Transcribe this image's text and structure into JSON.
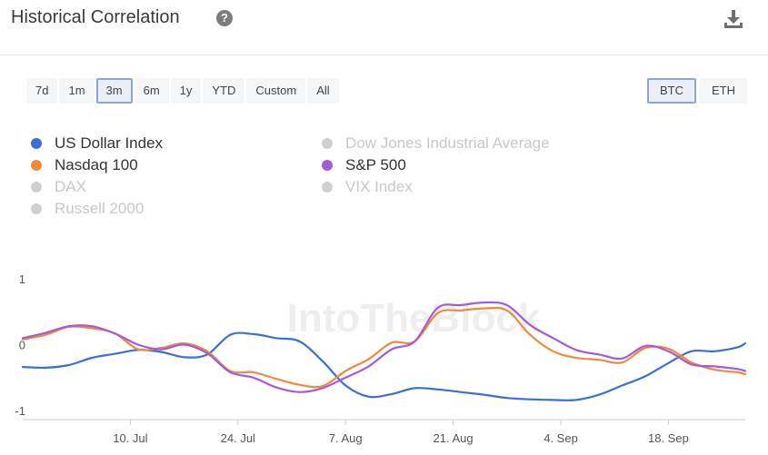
{
  "header": {
    "title": "Historical Correlation",
    "help_icon": "?"
  },
  "ranges": [
    "7d",
    "1m",
    "3m",
    "6m",
    "1y",
    "YTD",
    "Custom",
    "All"
  ],
  "active_range": "3m",
  "assets": [
    "BTC",
    "ETH"
  ],
  "active_asset": "BTC",
  "watermark": "IntoTheBlock",
  "legend": [
    {
      "label": "US Dollar Index",
      "color": "#3b6fd1",
      "active": true
    },
    {
      "label": "Dow Jones Industrial Average",
      "color": "#cfcfcf",
      "active": false
    },
    {
      "label": "Nasdaq 100",
      "color": "#ee8a3e",
      "active": true
    },
    {
      "label": "S&P 500",
      "color": "#a55bd8",
      "active": true
    },
    {
      "label": "DAX",
      "color": "#cfcfcf",
      "active": false
    },
    {
      "label": "VIX Index",
      "color": "#cfcfcf",
      "active": false
    },
    {
      "label": "Russell 2000",
      "color": "#cfcfcf",
      "active": false
    }
  ],
  "chart_data": {
    "type": "line",
    "ylim": [
      -1,
      1
    ],
    "yticks": [
      1,
      0,
      -1
    ],
    "x_range": [
      "2023-06-26",
      "2023-09-28"
    ],
    "xticks": [
      {
        "label": "10. Jul",
        "date": "2023-07-10"
      },
      {
        "label": "24. Jul",
        "date": "2023-07-24"
      },
      {
        "label": "7. Aug",
        "date": "2023-08-07"
      },
      {
        "label": "21. Aug",
        "date": "2023-08-21"
      },
      {
        "label": "4. Sep",
        "date": "2023-09-04"
      },
      {
        "label": "18. Sep",
        "date": "2023-09-18"
      }
    ],
    "grid": false,
    "series": [
      {
        "name": "US Dollar Index",
        "color": "#3b6fd1",
        "points": [
          [
            "2023-06-26",
            -0.34
          ],
          [
            "2023-06-29",
            -0.35
          ],
          [
            "2023-07-02",
            -0.31
          ],
          [
            "2023-07-05",
            -0.2
          ],
          [
            "2023-07-08",
            -0.14
          ],
          [
            "2023-07-11",
            -0.08
          ],
          [
            "2023-07-14",
            -0.11
          ],
          [
            "2023-07-17",
            -0.19
          ],
          [
            "2023-07-20",
            -0.15
          ],
          [
            "2023-07-23",
            0.15
          ],
          [
            "2023-07-26",
            0.16
          ],
          [
            "2023-07-29",
            0.1
          ],
          [
            "2023-08-01",
            0.05
          ],
          [
            "2023-08-04",
            -0.25
          ],
          [
            "2023-08-07",
            -0.62
          ],
          [
            "2023-08-10",
            -0.79
          ],
          [
            "2023-08-13",
            -0.75
          ],
          [
            "2023-08-16",
            -0.66
          ],
          [
            "2023-08-19",
            -0.68
          ],
          [
            "2023-08-22",
            -0.72
          ],
          [
            "2023-08-25",
            -0.76
          ],
          [
            "2023-08-28",
            -0.81
          ],
          [
            "2023-08-31",
            -0.83
          ],
          [
            "2023-09-03",
            -0.84
          ],
          [
            "2023-09-06",
            -0.84
          ],
          [
            "2023-09-09",
            -0.76
          ],
          [
            "2023-09-12",
            -0.62
          ],
          [
            "2023-09-15",
            -0.48
          ],
          [
            "2023-09-18",
            -0.28
          ],
          [
            "2023-09-21",
            -0.1
          ],
          [
            "2023-09-24",
            -0.1
          ],
          [
            "2023-09-27",
            -0.04
          ],
          [
            "2023-09-28",
            0.02
          ]
        ]
      },
      {
        "name": "Nasdaq 100",
        "color": "#ee8a3e",
        "points": [
          [
            "2023-06-26",
            0.08
          ],
          [
            "2023-06-29",
            0.15
          ],
          [
            "2023-07-02",
            0.27
          ],
          [
            "2023-07-05",
            0.25
          ],
          [
            "2023-07-08",
            0.17
          ],
          [
            "2023-07-11",
            -0.07
          ],
          [
            "2023-07-14",
            -0.05
          ],
          [
            "2023-07-17",
            0.02
          ],
          [
            "2023-07-20",
            -0.1
          ],
          [
            "2023-07-23",
            -0.4
          ],
          [
            "2023-07-26",
            -0.42
          ],
          [
            "2023-07-29",
            -0.52
          ],
          [
            "2023-08-01",
            -0.61
          ],
          [
            "2023-08-04",
            -0.63
          ],
          [
            "2023-08-07",
            -0.4
          ],
          [
            "2023-08-10",
            -0.22
          ],
          [
            "2023-08-13",
            0.03
          ],
          [
            "2023-08-16",
            0.05
          ],
          [
            "2023-08-19",
            0.48
          ],
          [
            "2023-08-22",
            0.52
          ],
          [
            "2023-08-25",
            0.55
          ],
          [
            "2023-08-28",
            0.52
          ],
          [
            "2023-08-31",
            0.15
          ],
          [
            "2023-09-03",
            -0.1
          ],
          [
            "2023-09-06",
            -0.2
          ],
          [
            "2023-09-09",
            -0.23
          ],
          [
            "2023-09-12",
            -0.27
          ],
          [
            "2023-09-15",
            -0.05
          ],
          [
            "2023-09-18",
            -0.06
          ],
          [
            "2023-09-21",
            -0.27
          ],
          [
            "2023-09-24",
            -0.38
          ],
          [
            "2023-09-27",
            -0.42
          ],
          [
            "2023-09-28",
            -0.45
          ]
        ]
      },
      {
        "name": "S&P 500",
        "color": "#a55bd8",
        "points": [
          [
            "2023-06-26",
            0.1
          ],
          [
            "2023-06-29",
            0.18
          ],
          [
            "2023-07-02",
            0.28
          ],
          [
            "2023-07-05",
            0.28
          ],
          [
            "2023-07-08",
            0.17
          ],
          [
            "2023-07-11",
            0.0
          ],
          [
            "2023-07-14",
            -0.07
          ],
          [
            "2023-07-17",
            0.0
          ],
          [
            "2023-07-20",
            -0.13
          ],
          [
            "2023-07-23",
            -0.42
          ],
          [
            "2023-07-26",
            -0.5
          ],
          [
            "2023-07-29",
            -0.65
          ],
          [
            "2023-08-01",
            -0.72
          ],
          [
            "2023-08-04",
            -0.66
          ],
          [
            "2023-08-07",
            -0.5
          ],
          [
            "2023-08-10",
            -0.33
          ],
          [
            "2023-08-13",
            -0.07
          ],
          [
            "2023-08-16",
            0.05
          ],
          [
            "2023-08-19",
            0.56
          ],
          [
            "2023-08-22",
            0.6
          ],
          [
            "2023-08-25",
            0.64
          ],
          [
            "2023-08-28",
            0.6
          ],
          [
            "2023-08-31",
            0.3
          ],
          [
            "2023-09-03",
            0.1
          ],
          [
            "2023-09-06",
            -0.08
          ],
          [
            "2023-09-09",
            -0.15
          ],
          [
            "2023-09-12",
            -0.21
          ],
          [
            "2023-09-15",
            -0.02
          ],
          [
            "2023-09-18",
            -0.1
          ],
          [
            "2023-09-21",
            -0.3
          ],
          [
            "2023-09-24",
            -0.33
          ],
          [
            "2023-09-27",
            -0.37
          ],
          [
            "2023-09-28",
            -0.4
          ]
        ]
      }
    ]
  }
}
